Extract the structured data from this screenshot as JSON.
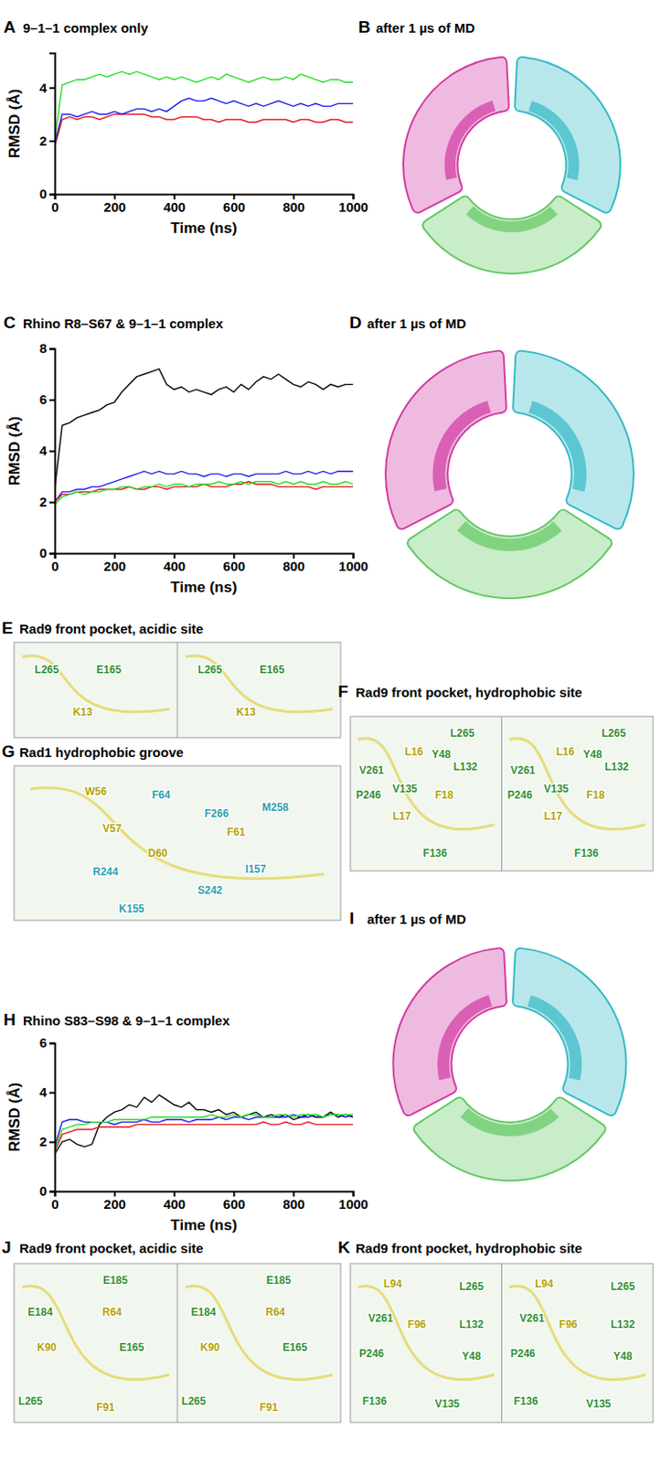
{
  "chart_data": [
    {
      "panel": "A",
      "type": "line",
      "title": "9–1–1 complex only",
      "x_label": "Time (ns)",
      "y_label": "RMSD (Å)",
      "x": [
        0,
        25,
        50,
        75,
        100,
        125,
        150,
        175,
        200,
        225,
        250,
        275,
        300,
        325,
        350,
        375,
        400,
        425,
        450,
        475,
        500,
        525,
        550,
        575,
        600,
        625,
        650,
        675,
        700,
        725,
        750,
        775,
        800,
        825,
        850,
        875,
        900,
        925,
        950,
        975,
        1000
      ],
      "series": [
        {
          "color": "#e8141c",
          "values": [
            1.8,
            2.8,
            2.9,
            2.8,
            2.9,
            2.9,
            2.8,
            2.9,
            3.0,
            3.0,
            3.0,
            3.0,
            3.0,
            2.9,
            2.9,
            2.8,
            2.8,
            2.9,
            2.9,
            2.9,
            2.8,
            2.8,
            2.7,
            2.8,
            2.8,
            2.8,
            2.7,
            2.7,
            2.8,
            2.8,
            2.8,
            2.8,
            2.7,
            2.8,
            2.8,
            2.7,
            2.7,
            2.8,
            2.8,
            2.7,
            2.7
          ]
        },
        {
          "color": "#1a1aeb",
          "values": [
            1.9,
            3.0,
            3.0,
            2.9,
            3.0,
            3.1,
            3.0,
            3.0,
            3.1,
            3.0,
            3.1,
            3.2,
            3.2,
            3.1,
            3.2,
            3.1,
            3.3,
            3.5,
            3.6,
            3.5,
            3.5,
            3.6,
            3.5,
            3.4,
            3.5,
            3.4,
            3.3,
            3.4,
            3.3,
            3.4,
            3.5,
            3.4,
            3.3,
            3.4,
            3.3,
            3.4,
            3.3,
            3.3,
            3.4,
            3.4,
            3.4
          ]
        },
        {
          "color": "#22e022",
          "values": [
            2.0,
            4.1,
            4.2,
            4.3,
            4.3,
            4.4,
            4.5,
            4.4,
            4.5,
            4.6,
            4.5,
            4.6,
            4.5,
            4.4,
            4.3,
            4.4,
            4.3,
            4.4,
            4.3,
            4.2,
            4.3,
            4.4,
            4.3,
            4.5,
            4.4,
            4.3,
            4.2,
            4.3,
            4.4,
            4.3,
            4.3,
            4.4,
            4.3,
            4.5,
            4.4,
            4.3,
            4.2,
            4.3,
            4.3,
            4.2,
            4.2
          ]
        }
      ],
      "xlim": [
        0,
        1000
      ],
      "xticks": [
        0,
        200,
        400,
        600,
        800,
        1000
      ],
      "ylim": [
        0,
        5.3
      ],
      "yticks": [
        0,
        2,
        4
      ]
    },
    {
      "panel": "C",
      "type": "line",
      "title": "Rhino R8–S67 & 9–1–1 complex",
      "x_label": "Time (ns)",
      "y_label": "RMSD (Å)",
      "x": [
        0,
        25,
        50,
        75,
        100,
        125,
        150,
        175,
        200,
        225,
        250,
        275,
        300,
        325,
        350,
        375,
        400,
        425,
        450,
        475,
        500,
        525,
        550,
        575,
        600,
        625,
        650,
        675,
        700,
        725,
        750,
        775,
        800,
        825,
        850,
        875,
        900,
        925,
        950,
        975,
        1000
      ],
      "series": [
        {
          "color": "#000000",
          "values": [
            2.5,
            5.0,
            5.1,
            5.3,
            5.4,
            5.5,
            5.6,
            5.8,
            5.9,
            6.3,
            6.6,
            6.9,
            7.0,
            7.1,
            7.2,
            6.6,
            6.4,
            6.5,
            6.3,
            6.4,
            6.3,
            6.2,
            6.4,
            6.5,
            6.3,
            6.6,
            6.4,
            6.7,
            6.9,
            6.8,
            7.0,
            6.8,
            6.6,
            6.5,
            6.7,
            6.6,
            6.4,
            6.6,
            6.5,
            6.6,
            6.6
          ]
        },
        {
          "color": "#1a1aeb",
          "values": [
            2.0,
            2.4,
            2.4,
            2.5,
            2.5,
            2.6,
            2.6,
            2.7,
            2.8,
            2.9,
            3.0,
            3.1,
            3.2,
            3.1,
            3.2,
            3.1,
            3.1,
            3.2,
            3.1,
            3.1,
            3.0,
            3.1,
            3.1,
            3.0,
            3.1,
            3.1,
            3.0,
            3.1,
            3.1,
            3.1,
            3.1,
            3.2,
            3.1,
            3.1,
            3.2,
            3.1,
            3.2,
            3.1,
            3.2,
            3.2,
            3.2
          ]
        },
        {
          "color": "#e8141c",
          "values": [
            2.0,
            2.3,
            2.3,
            2.4,
            2.4,
            2.4,
            2.5,
            2.5,
            2.5,
            2.5,
            2.6,
            2.5,
            2.5,
            2.6,
            2.6,
            2.5,
            2.6,
            2.6,
            2.6,
            2.6,
            2.7,
            2.6,
            2.6,
            2.6,
            2.7,
            2.7,
            2.8,
            2.7,
            2.7,
            2.7,
            2.6,
            2.6,
            2.6,
            2.6,
            2.6,
            2.5,
            2.6,
            2.6,
            2.6,
            2.6,
            2.6
          ]
        },
        {
          "color": "#22e022",
          "values": [
            1.9,
            2.2,
            2.3,
            2.4,
            2.3,
            2.4,
            2.4,
            2.5,
            2.5,
            2.6,
            2.6,
            2.5,
            2.6,
            2.6,
            2.7,
            2.6,
            2.7,
            2.7,
            2.6,
            2.7,
            2.7,
            2.7,
            2.8,
            2.7,
            2.7,
            2.8,
            2.7,
            2.8,
            2.8,
            2.8,
            2.7,
            2.8,
            2.7,
            2.8,
            2.7,
            2.7,
            2.8,
            2.7,
            2.7,
            2.8,
            2.7
          ]
        }
      ],
      "xlim": [
        0,
        1000
      ],
      "xticks": [
        0,
        200,
        400,
        600,
        800,
        1000
      ],
      "ylim": [
        0,
        8
      ],
      "yticks": [
        0,
        2,
        4,
        6,
        8
      ]
    },
    {
      "panel": "H",
      "type": "line",
      "title": "Rhino S83–S98 & 9–1–1 complex",
      "x_label": "Time (ns)",
      "y_label": "RMSD (Å)",
      "x": [
        0,
        25,
        50,
        75,
        100,
        125,
        150,
        175,
        200,
        225,
        250,
        275,
        300,
        325,
        350,
        375,
        400,
        425,
        450,
        475,
        500,
        525,
        550,
        575,
        600,
        625,
        650,
        675,
        700,
        725,
        750,
        775,
        800,
        825,
        850,
        875,
        900,
        925,
        950,
        975,
        1000
      ],
      "series": [
        {
          "color": "#000000",
          "values": [
            1.5,
            2.0,
            2.1,
            1.9,
            1.8,
            1.9,
            2.7,
            3.0,
            3.2,
            3.3,
            3.5,
            3.4,
            3.8,
            3.6,
            3.9,
            3.7,
            3.5,
            3.4,
            3.6,
            3.3,
            3.3,
            3.2,
            3.3,
            3.1,
            3.2,
            3.0,
            3.1,
            3.2,
            3.0,
            3.1,
            3.0,
            3.1,
            2.9,
            3.0,
            3.1,
            3.0,
            3.0,
            3.2,
            3.0,
            3.1,
            3.0
          ]
        },
        {
          "color": "#1a1aeb",
          "values": [
            1.8,
            2.8,
            2.9,
            2.9,
            2.8,
            2.8,
            2.8,
            2.8,
            2.7,
            2.8,
            2.8,
            2.8,
            2.9,
            2.8,
            2.8,
            2.9,
            2.9,
            2.9,
            2.8,
            2.9,
            2.9,
            2.9,
            3.0,
            2.9,
            3.0,
            3.0,
            2.9,
            3.0,
            3.0,
            3.0,
            3.0,
            3.0,
            3.1,
            3.0,
            3.0,
            3.1,
            3.0,
            3.1,
            3.1,
            3.0,
            3.1
          ]
        },
        {
          "color": "#e8141c",
          "values": [
            1.6,
            2.3,
            2.4,
            2.5,
            2.5,
            2.5,
            2.6,
            2.6,
            2.6,
            2.6,
            2.6,
            2.7,
            2.7,
            2.7,
            2.7,
            2.7,
            2.7,
            2.7,
            2.7,
            2.7,
            2.7,
            2.7,
            2.7,
            2.7,
            2.7,
            2.7,
            2.7,
            2.7,
            2.8,
            2.7,
            2.7,
            2.8,
            2.7,
            2.7,
            2.8,
            2.7,
            2.7,
            2.7,
            2.7,
            2.7,
            2.7
          ]
        },
        {
          "color": "#22e022",
          "values": [
            1.7,
            2.5,
            2.6,
            2.7,
            2.7,
            2.8,
            2.8,
            2.8,
            2.9,
            2.9,
            2.9,
            2.9,
            2.9,
            3.0,
            3.0,
            3.0,
            3.0,
            3.0,
            3.0,
            3.0,
            3.0,
            3.1,
            3.0,
            3.0,
            3.1,
            3.0,
            3.1,
            3.1,
            3.0,
            3.0,
            3.1,
            3.1,
            3.0,
            3.1,
            3.1,
            3.1,
            3.0,
            3.1,
            3.1,
            3.1,
            3.1
          ]
        }
      ],
      "xlim": [
        0,
        1000
      ],
      "xticks": [
        0,
        200,
        400,
        600,
        800,
        1000
      ],
      "ylim": [
        0,
        6
      ],
      "yticks": [
        0,
        2,
        4,
        6
      ]
    }
  ],
  "structures": [
    {
      "panel": "B",
      "title": "after 1 µs of MD"
    },
    {
      "panel": "D",
      "title": "after 1 µs of MD"
    },
    {
      "panel": "E",
      "title": "Rad9 front pocket, acidic site",
      "stereo": true,
      "labels": [
        {
          "text": "L265",
          "color": "#2f8f2f"
        },
        {
          "text": "E165",
          "color": "#2f8f2f"
        },
        {
          "text": "K13",
          "color": "#b3a200"
        }
      ]
    },
    {
      "panel": "F",
      "title": "Rad9 front pocket, hydrophobic site",
      "stereo": true,
      "labels": [
        {
          "text": "L265",
          "color": "#2f8f2f"
        },
        {
          "text": "L16",
          "color": "#b3a200"
        },
        {
          "text": "Y48",
          "color": "#2f8f2f"
        },
        {
          "text": "L132",
          "color": "#2f8f2f"
        },
        {
          "text": "V261",
          "color": "#2f8f2f"
        },
        {
          "text": "V135",
          "color": "#2f8f2f"
        },
        {
          "text": "P246",
          "color": "#2f8f2f"
        },
        {
          "text": "F18",
          "color": "#b3a200"
        },
        {
          "text": "L17",
          "color": "#b3a200"
        },
        {
          "text": "F136",
          "color": "#2f8f2f"
        }
      ]
    },
    {
      "panel": "G",
      "title": "Rad1 hydrophobic groove",
      "stereo": false,
      "labels": [
        {
          "text": "W56",
          "color": "#b3a200"
        },
        {
          "text": "F64",
          "color": "#2c9eb0"
        },
        {
          "text": "F266",
          "color": "#2c9eb0"
        },
        {
          "text": "M258",
          "color": "#2c9eb0"
        },
        {
          "text": "V57",
          "color": "#b3a200"
        },
        {
          "text": "F61",
          "color": "#b3a200"
        },
        {
          "text": "D60",
          "color": "#b3a200"
        },
        {
          "text": "R244",
          "color": "#2c9eb0"
        },
        {
          "text": "I157",
          "color": "#2c9eb0"
        },
        {
          "text": "S242",
          "color": "#2c9eb0"
        },
        {
          "text": "K155",
          "color": "#2c9eb0"
        }
      ]
    },
    {
      "panel": "I",
      "title": "after 1 µs of MD"
    },
    {
      "panel": "J",
      "title": "Rad9 front pocket, acidic site",
      "stereo": true,
      "labels": [
        {
          "text": "E185",
          "color": "#2f8f2f"
        },
        {
          "text": "E184",
          "color": "#2f8f2f"
        },
        {
          "text": "R64",
          "color": "#b3a200"
        },
        {
          "text": "K90",
          "color": "#b3a200"
        },
        {
          "text": "E165",
          "color": "#2f8f2f"
        },
        {
          "text": "L265",
          "color": "#2f8f2f"
        },
        {
          "text": "F91",
          "color": "#b3a200"
        }
      ]
    },
    {
      "panel": "K",
      "title": "Rad9 front pocket, hydrophobic site",
      "stereo": true,
      "labels": [
        {
          "text": "L94",
          "color": "#b3a200"
        },
        {
          "text": "L265",
          "color": "#2f8f2f"
        },
        {
          "text": "V261",
          "color": "#2f8f2f"
        },
        {
          "text": "L132",
          "color": "#2f8f2f"
        },
        {
          "text": "F96",
          "color": "#b3a200"
        },
        {
          "text": "Y48",
          "color": "#2f8f2f"
        },
        {
          "text": "P246",
          "color": "#2f8f2f"
        },
        {
          "text": "F136",
          "color": "#2f8f2f"
        },
        {
          "text": "V135",
          "color": "#2f8f2f"
        }
      ]
    }
  ]
}
